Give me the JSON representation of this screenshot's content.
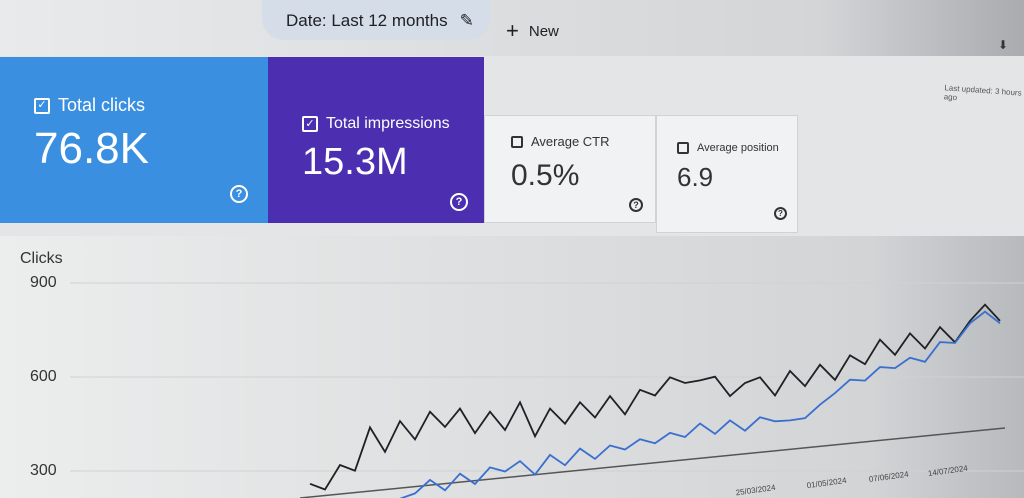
{
  "header": {
    "date_filter": "Date: Last 12 months",
    "new_label": "New",
    "updated": "Last updated: 3 hours ago"
  },
  "cards": [
    {
      "label": "Total clicks",
      "value": "76.8K",
      "checked": true,
      "color": "#3b8fe0"
    },
    {
      "label": "Total impressions",
      "value": "15.3M",
      "checked": true,
      "color": "#4b2fb0"
    },
    {
      "label": "Average CTR",
      "value": "0.5%",
      "checked": false
    },
    {
      "label": "Average position",
      "value": "6.9",
      "checked": false
    }
  ],
  "chart_data": {
    "type": "line",
    "ylabel": "Clicks",
    "yticks": [
      "900",
      "600",
      "300"
    ],
    "ylim": [
      200,
      950
    ],
    "xticks": [
      "25/03/2024",
      "01/05/2024",
      "07/06/2024",
      "14/07/2024"
    ],
    "grid": true,
    "series": [
      {
        "color": "#202124",
        "values": [
          240,
          260,
          300,
          320,
          420,
          380,
          440,
          420,
          470,
          460,
          480,
          440,
          470,
          450,
          500,
          430,
          480,
          470,
          500,
          490,
          520,
          500,
          540,
          560,
          580,
          600,
          570,
          620,
          520,
          600,
          580,
          560,
          600,
          590,
          620,
          610,
          650,
          660,
          700,
          690,
          720,
          710,
          740,
          730,
          760,
          850,
          760
        ]
      },
      {
        "color": "#3a6fd0",
        "values": [
          null,
          null,
          null,
          null,
          null,
          null,
          200,
          240,
          260,
          250,
          280,
          270,
          300,
          310,
          320,
          300,
          340,
          330,
          360,
          350,
          370,
          380,
          390,
          400,
          410,
          420,
          440,
          430,
          450,
          440,
          460,
          470,
          450,
          480,
          500,
          560,
          580,
          600,
          620,
          640,
          650,
          660,
          700,
          720,
          760,
          820,
          760
        ]
      }
    ]
  }
}
